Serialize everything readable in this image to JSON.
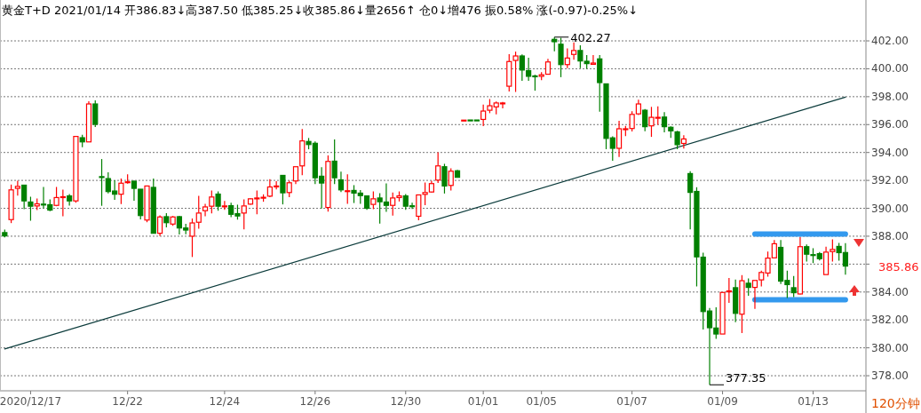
{
  "chart_data": {
    "type": "candlestick",
    "title": "黄金T+D 2021/01/14 开386.83↓高387.50 低385.25↓收385.86↓量2656↑ 仓0↓增476 振0.58% 涨(-0.97)-0.25%↓",
    "categories": [
      null,
      null,
      null,
      null,
      "2020/12/17",
      null,
      null,
      null,
      null,
      null,
      null,
      null,
      null,
      null,
      null,
      null,
      null,
      null,
      null,
      "12/22",
      null,
      null,
      null,
      null,
      null,
      null,
      null,
      null,
      null,
      null,
      null,
      null,
      null,
      null,
      "12/24",
      null,
      null,
      null,
      null,
      null,
      null,
      null,
      null,
      null,
      null,
      null,
      null,
      null,
      "12/26",
      null,
      null,
      null,
      null,
      null,
      null,
      null,
      null,
      null,
      null,
      null,
      null,
      null,
      "12/30",
      null,
      null,
      null,
      null,
      null,
      null,
      null,
      null,
      null,
      null,
      null,
      "01/01",
      null,
      null,
      null,
      null,
      null,
      null,
      null,
      null,
      "01/05",
      null,
      null,
      null,
      null,
      null,
      null,
      null,
      null,
      null,
      null,
      null,
      null,
      null,
      "01/07",
      null,
      null,
      null,
      null,
      null,
      null,
      null,
      null,
      null,
      null,
      null,
      null,
      null,
      "01/09",
      null,
      null,
      null,
      null,
      null,
      null,
      null,
      null,
      null,
      null,
      null,
      null,
      null,
      "01/13",
      null,
      null,
      null,
      null,
      null
    ],
    "ohlc": [
      [
        388.26,
        388.47,
        387.91,
        388.02
      ],
      [
        389.19,
        391.7,
        388.94,
        391.32
      ],
      [
        391.43,
        391.98,
        390.91,
        391.57
      ],
      [
        391.66,
        391.66,
        389.94,
        390.53
      ],
      [
        390.45,
        390.83,
        389.11,
        390.15
      ],
      [
        390.17,
        390.7,
        389.87,
        390.32
      ],
      [
        390.3,
        391.53,
        390.0,
        390.28
      ],
      [
        390.26,
        390.64,
        389.79,
        389.87
      ],
      [
        390.21,
        391.53,
        390.15,
        390.77
      ],
      [
        390.82,
        391.34,
        389.43,
        390.83
      ],
      [
        390.89,
        391.02,
        390.19,
        390.53
      ],
      [
        390.53,
        395.15,
        390.4,
        395.15
      ],
      [
        395.06,
        395.27,
        394.38,
        394.76
      ],
      [
        394.76,
        397.67,
        394.76,
        397.48
      ],
      [
        397.48,
        397.73,
        395.83,
        396.02
      ],
      [
        392.27,
        393.53,
        390.18,
        392.24
      ],
      [
        392.13,
        392.58,
        391.07,
        391.2
      ],
      [
        391.24,
        392.0,
        390.6,
        391.01
      ],
      [
        391.01,
        392.13,
        390.3,
        391.8
      ],
      [
        391.88,
        392.43,
        391.77,
        391.9
      ],
      [
        391.94,
        391.99,
        390.54,
        391.43
      ],
      [
        391.37,
        391.37,
        389.2,
        389.48
      ],
      [
        389.16,
        391.6,
        389.0,
        391.6
      ],
      [
        391.5,
        392.13,
        388.21,
        388.21
      ],
      [
        388.21,
        389.49,
        388.02,
        389.38
      ],
      [
        389.4,
        389.65,
        388.63,
        388.97
      ],
      [
        388.87,
        389.45,
        388.75,
        389.38
      ],
      [
        389.4,
        389.46,
        388.12,
        388.59
      ],
      [
        388.59,
        388.89,
        388.14,
        388.44
      ],
      [
        388.0,
        389.27,
        386.51,
        388.95
      ],
      [
        389.0,
        390.89,
        388.53,
        389.66
      ],
      [
        389.83,
        390.32,
        389.43,
        390.1
      ],
      [
        390.15,
        391.28,
        389.64,
        390.81
      ],
      [
        391.02,
        391.21,
        389.83,
        390.15
      ],
      [
        390.16,
        390.53,
        389.89,
        390.17
      ],
      [
        390.19,
        390.4,
        389.36,
        389.57
      ],
      [
        389.62,
        390.26,
        389.19,
        389.45
      ],
      [
        389.66,
        390.64,
        388.49,
        390.17
      ],
      [
        390.3,
        390.74,
        390.26,
        390.68
      ],
      [
        390.73,
        391.28,
        389.57,
        390.74
      ],
      [
        390.77,
        391.0,
        390.47,
        390.79
      ],
      [
        390.87,
        392.09,
        390.79,
        391.53
      ],
      [
        391.58,
        391.94,
        391.36,
        391.6
      ],
      [
        392.36,
        392.36,
        390.28,
        391.11
      ],
      [
        391.13,
        391.98,
        390.79,
        391.83
      ],
      [
        391.96,
        392.98,
        391.74,
        392.98
      ],
      [
        393.04,
        395.68,
        392.38,
        394.83
      ],
      [
        394.79,
        395.04,
        394.23,
        394.57
      ],
      [
        394.66,
        394.79,
        391.74,
        392.19
      ],
      [
        392.3,
        392.94,
        389.98,
        391.81
      ],
      [
        390.06,
        393.79,
        389.77,
        393.36
      ],
      [
        393.38,
        394.94,
        391.74,
        392.19
      ],
      [
        392.04,
        392.62,
        391.17,
        391.32
      ],
      [
        391.24,
        392.43,
        390.32,
        391.26
      ],
      [
        391.28,
        391.66,
        390.38,
        391.09
      ],
      [
        391.09,
        391.3,
        390.32,
        390.91
      ],
      [
        390.89,
        390.89,
        389.89,
        390.0
      ],
      [
        390.28,
        391.21,
        389.94,
        390.68
      ],
      [
        390.74,
        391.09,
        388.91,
        390.47
      ],
      [
        390.45,
        391.79,
        389.74,
        390.21
      ],
      [
        390.21,
        391.13,
        389.47,
        390.74
      ],
      [
        390.77,
        391.21,
        390.49,
        390.89
      ],
      [
        390.89,
        391.02,
        389.89,
        390.15
      ],
      [
        390.18,
        390.4,
        389.96,
        390.17
      ],
      [
        389.43,
        390.96,
        389.15,
        390.96
      ],
      [
        391.0,
        391.85,
        390.23,
        391.13
      ],
      [
        391.17,
        391.98,
        391.11,
        391.77
      ],
      [
        392.02,
        394.02,
        391.81,
        393.04
      ],
      [
        392.98,
        393.19,
        391.06,
        391.6
      ],
      [
        391.64,
        392.87,
        391.28,
        392.66
      ],
      [
        392.69,
        392.75,
        392.2,
        392.22
      ],
      [
        396.31,
        396.32,
        396.31,
        396.32
      ],
      [
        396.33,
        396.33,
        396.32,
        396.32
      ],
      [
        396.33,
        396.33,
        396.32,
        396.32
      ],
      [
        396.37,
        397.44,
        395.89,
        396.97
      ],
      [
        397.03,
        397.83,
        396.82,
        397.35
      ],
      [
        397.27,
        397.66,
        396.73,
        397.55
      ],
      [
        397.54,
        397.63,
        397.16,
        397.55
      ],
      [
        398.75,
        401.05,
        398.37,
        400.52
      ],
      [
        400.6,
        401.23,
        398.34,
        400.92
      ],
      [
        400.92,
        401.03,
        399.14,
        399.91
      ],
      [
        399.87,
        400.8,
        399.14,
        399.46
      ],
      [
        399.49,
        399.57,
        398.43,
        399.48
      ],
      [
        399.46,
        399.76,
        399.18,
        399.57
      ],
      [
        399.61,
        400.71,
        399.61,
        400.49
      ],
      [
        402.11,
        402.27,
        401.25,
        401.94
      ],
      [
        401.76,
        402.22,
        399.4,
        400.3
      ],
      [
        400.3,
        401.46,
        400.04,
        400.77
      ],
      [
        401.03,
        401.89,
        400.65,
        401.31
      ],
      [
        401.31,
        401.68,
        400.04,
        400.56
      ],
      [
        400.54,
        400.99,
        400.0,
        400.37
      ],
      [
        400.32,
        400.99,
        400.32,
        400.41
      ],
      [
        400.71,
        400.99,
        396.92,
        399.01
      ],
      [
        398.92,
        398.92,
        394.24,
        395.01
      ],
      [
        395.05,
        395.16,
        393.4,
        394.3
      ],
      [
        394.3,
        396.28,
        393.68,
        395.7
      ],
      [
        395.69,
        395.91,
        395.18,
        395.7
      ],
      [
        395.72,
        396.95,
        395.51,
        396.73
      ],
      [
        396.77,
        397.78,
        396.69,
        397.48
      ],
      [
        397.03,
        397.12,
        395.53,
        395.85
      ],
      [
        395.91,
        397.27,
        395.12,
        396.52
      ],
      [
        396.51,
        397.31,
        395.98,
        396.52
      ],
      [
        396.54,
        396.9,
        395.44,
        395.85
      ],
      [
        395.81,
        395.87,
        395.05,
        395.55
      ],
      [
        395.48,
        395.55,
        394.24,
        394.56
      ],
      [
        394.65,
        395.23,
        394.28,
        394.97
      ],
      [
        392.49,
        392.66,
        388.49,
        391.14
      ],
      [
        391.21,
        391.51,
        384.4,
        386.52
      ],
      [
        386.5,
        386.82,
        381.31,
        382.6
      ],
      [
        382.64,
        382.86,
        377.35,
        381.44
      ],
      [
        381.42,
        382.9,
        380.65,
        380.99
      ],
      [
        380.99,
        383.97,
        380.99,
        383.97
      ],
      [
        384.01,
        385.0,
        383.22,
        384.08
      ],
      [
        384.31,
        384.89,
        381.83,
        382.47
      ],
      [
        382.41,
        385.21,
        381.06,
        384.81
      ],
      [
        384.63,
        384.98,
        383.73,
        384.33
      ],
      [
        384.33,
        384.83,
        382.79,
        384.83
      ],
      [
        384.87,
        385.53,
        384.4,
        385.4
      ],
      [
        385.36,
        386.9,
        385.1,
        386.43
      ],
      [
        386.45,
        387.72,
        386.45,
        387.46
      ],
      [
        387.2,
        387.72,
        384.57,
        384.78
      ],
      [
        384.83,
        385.53,
        383.58,
        384.53
      ],
      [
        384.31,
        385.15,
        383.63,
        383.95
      ],
      [
        383.86,
        387.93,
        383.82,
        387.25
      ],
      [
        387.25,
        387.4,
        386.18,
        386.71
      ],
      [
        386.68,
        387.14,
        386.07,
        386.67
      ],
      [
        386.75,
        386.86,
        386.26,
        386.39
      ],
      [
        385.25,
        387.25,
        385.25,
        386.86
      ],
      [
        386.9,
        387.78,
        386.18,
        387.05
      ],
      [
        387.27,
        387.52,
        386.24,
        386.82
      ],
      [
        386.83,
        387.5,
        385.25,
        385.86
      ]
    ],
    "colors": [
      "#008000",
      "#ff0000",
      "#ff0000",
      "#008000",
      "#008000",
      "#ff0000",
      "#008000",
      "#008000",
      "#ff0000",
      "#ff0000",
      "#008000",
      "#ff0000",
      "#008000",
      "#ff0000",
      "#008000",
      "#008000",
      "#008000",
      "#008000",
      "#ff0000",
      "#ff0000",
      "#008000",
      "#008000",
      "#ff0000",
      "#008000",
      "#ff0000",
      "#008000",
      "#ff0000",
      "#008000",
      "#008000",
      "#ff0000",
      "#ff0000",
      "#ff0000",
      "#ff0000",
      "#008000",
      "#ff0000",
      "#008000",
      "#008000",
      "#ff0000",
      "#ff0000",
      "#ff0000",
      "#ff0000",
      "#ff0000",
      "#ff0000",
      "#008000",
      "#ff0000",
      "#ff0000",
      "#ff0000",
      "#008000",
      "#008000",
      "#008000",
      "#ff0000",
      "#008000",
      "#008000",
      "#ff0000",
      "#008000",
      "#008000",
      "#008000",
      "#ff0000",
      "#008000",
      "#008000",
      "#ff0000",
      "#ff0000",
      "#008000",
      "#008000",
      "#ff0000",
      "#ff0000",
      "#ff0000",
      "#ff0000",
      "#008000",
      "#ff0000",
      "#008000",
      "#ff0000",
      "#008000",
      "#008000",
      "#ff0000",
      "#ff0000",
      "#ff0000",
      "#ff0000",
      "#ff0000",
      "#ff0000",
      "#008000",
      "#008000",
      "#008000",
      "#ff0000",
      "#ff0000",
      "#008000",
      "#008000",
      "#ff0000",
      "#ff0000",
      "#008000",
      "#008000",
      "#ff0000",
      "#008000",
      "#008000",
      "#008000",
      "#ff0000",
      "#ff0000",
      "#ff0000",
      "#ff0000",
      "#008000",
      "#ff0000",
      "#ff0000",
      "#008000",
      "#008000",
      "#008000",
      "#ff0000",
      "#008000",
      "#008000",
      "#008000",
      "#008000",
      "#008000",
      "#ff0000",
      "#ff0000",
      "#008000",
      "#ff0000",
      "#008000",
      "#ff0000",
      "#ff0000",
      "#ff0000",
      "#ff0000",
      "#008000",
      "#008000",
      "#008000",
      "#ff0000",
      "#008000",
      "#008000",
      "#008000",
      "#ff0000",
      "#ff0000",
      "#008000",
      "#008000"
    ],
    "series": [
      {
        "type": "line",
        "color": "#0b3b3b",
        "values": [
          379.92,
          null,
          null,
          null,
          null,
          null,
          null,
          null,
          null,
          null,
          null,
          null,
          null,
          null,
          null,
          null,
          null,
          null,
          null,
          null,
          null,
          null,
          null,
          null,
          null,
          null,
          null,
          null,
          null,
          null,
          null,
          null,
          null,
          null,
          null,
          null,
          null,
          null,
          null,
          null,
          null,
          null,
          null,
          null,
          null,
          null,
          null,
          null,
          null,
          null,
          null,
          null,
          null,
          null,
          null,
          null,
          null,
          null,
          null,
          null,
          null,
          null,
          null,
          null,
          null,
          null,
          null,
          null,
          null,
          null,
          null,
          null,
          null,
          null,
          null,
          null,
          null,
          null,
          null,
          null,
          null,
          null,
          null,
          null,
          null,
          null,
          null,
          null,
          null,
          null,
          null,
          null,
          null,
          null,
          null,
          null,
          null,
          null,
          null,
          null,
          null,
          null,
          null,
          null,
          null,
          null,
          null,
          null,
          null,
          null,
          null,
          null,
          null,
          null,
          null,
          null,
          null,
          null,
          null,
          null,
          null,
          null,
          null,
          null,
          null,
          null,
          null,
          null,
          null,
          null,
          397.97
        ]
      },
      {
        "type": "line",
        "color": "#3399ee",
        "values": [
          null,
          null,
          null,
          null,
          null,
          null,
          null,
          null,
          null,
          null,
          null,
          null,
          null,
          null,
          null,
          null,
          null,
          null,
          null,
          null,
          null,
          null,
          null,
          null,
          null,
          null,
          null,
          null,
          null,
          null,
          null,
          null,
          null,
          null,
          null,
          null,
          null,
          null,
          null,
          null,
          null,
          null,
          null,
          null,
          null,
          null,
          null,
          null,
          null,
          null,
          null,
          null,
          null,
          null,
          null,
          null,
          null,
          null,
          null,
          null,
          null,
          null,
          null,
          null,
          null,
          null,
          null,
          null,
          null,
          null,
          null,
          null,
          null,
          null,
          null,
          null,
          null,
          null,
          null,
          null,
          null,
          null,
          null,
          null,
          null,
          null,
          null,
          null,
          null,
          null,
          null,
          null,
          null,
          null,
          null,
          null,
          null,
          null,
          null,
          null,
          null,
          null,
          null,
          null,
          null,
          null,
          null,
          null,
          null,
          null,
          null,
          null,
          null,
          null,
          null,
          null,
          388.16,
          null,
          null,
          null,
          null,
          null,
          null,
          null,
          null,
          null,
          null,
          null,
          null,
          null,
          388.16
        ]
      },
      {
        "type": "line",
        "color": "#3399ee",
        "values": [
          null,
          null,
          null,
          null,
          null,
          null,
          null,
          null,
          null,
          null,
          null,
          null,
          null,
          null,
          null,
          null,
          null,
          null,
          null,
          null,
          null,
          null,
          null,
          null,
          null,
          null,
          null,
          null,
          null,
          null,
          null,
          null,
          null,
          null,
          null,
          null,
          null,
          null,
          null,
          null,
          null,
          null,
          null,
          null,
          null,
          null,
          null,
          null,
          null,
          null,
          null,
          null,
          null,
          null,
          null,
          null,
          null,
          null,
          null,
          null,
          null,
          null,
          null,
          null,
          null,
          null,
          null,
          null,
          null,
          null,
          null,
          null,
          null,
          null,
          null,
          null,
          null,
          null,
          null,
          null,
          null,
          null,
          null,
          null,
          null,
          null,
          null,
          null,
          null,
          null,
          null,
          null,
          null,
          null,
          null,
          null,
          null,
          null,
          null,
          null,
          null,
          null,
          null,
          null,
          null,
          null,
          null,
          null,
          null,
          null,
          null,
          null,
          null,
          null,
          null,
          null,
          383.44,
          null,
          null,
          null,
          null,
          null,
          null,
          null,
          null,
          null,
          null,
          null,
          null,
          null,
          383.44
        ]
      }
    ],
    "ylim": [
      376.92,
      404.93
    ],
    "yticks": [
      {
        "value": 378,
        "label": "378.00"
      },
      {
        "value": 380,
        "label": "380.00"
      },
      {
        "value": 382,
        "label": "382.00"
      },
      {
        "value": 384,
        "label": "384.00"
      },
      {
        "value": 386,
        "label": null
      },
      {
        "value": 388,
        "label": "388.00"
      },
      {
        "value": 390,
        "label": "390.00"
      },
      {
        "value": 392,
        "label": "392.00"
      },
      {
        "value": 394,
        "label": "394.00"
      },
      {
        "value": 396,
        "label": "396.00"
      },
      {
        "value": 398,
        "label": "398.00"
      },
      {
        "value": 400,
        "label": "400.00"
      },
      {
        "value": 402,
        "label": "402.00"
      }
    ],
    "grid": "y",
    "annotations": [
      "402.27",
      "377.35",
      "385.86",
      "120分钟"
    ]
  }
}
